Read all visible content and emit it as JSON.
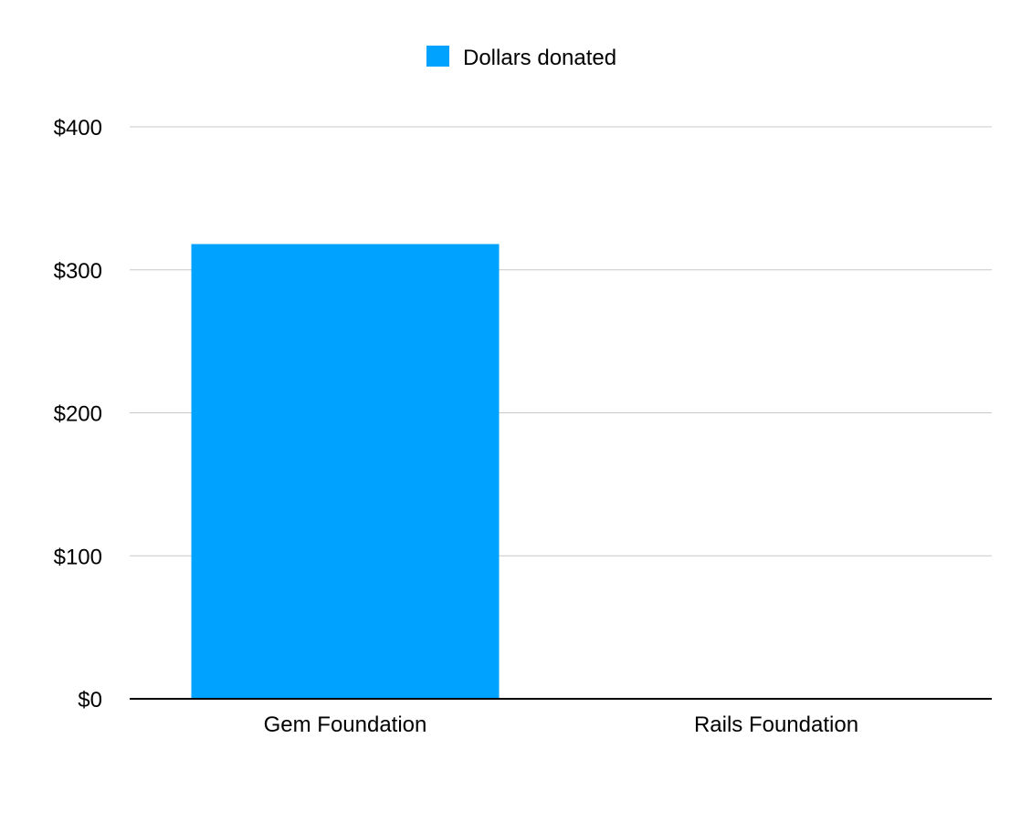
{
  "chart_data": {
    "type": "bar",
    "categories": [
      "Gem Foundation",
      "Rails Foundation"
    ],
    "series": [
      {
        "name": "Dollars donated",
        "values": [
          318,
          0
        ],
        "color": "#00a2ff"
      }
    ],
    "y_ticks": [
      0,
      100,
      200,
      300,
      400
    ],
    "y_tick_labels": [
      "$0",
      "$100",
      "$200",
      "$300",
      "$400"
    ],
    "ylim": [
      0,
      400
    ],
    "grid": true,
    "legend": "top-center"
  }
}
